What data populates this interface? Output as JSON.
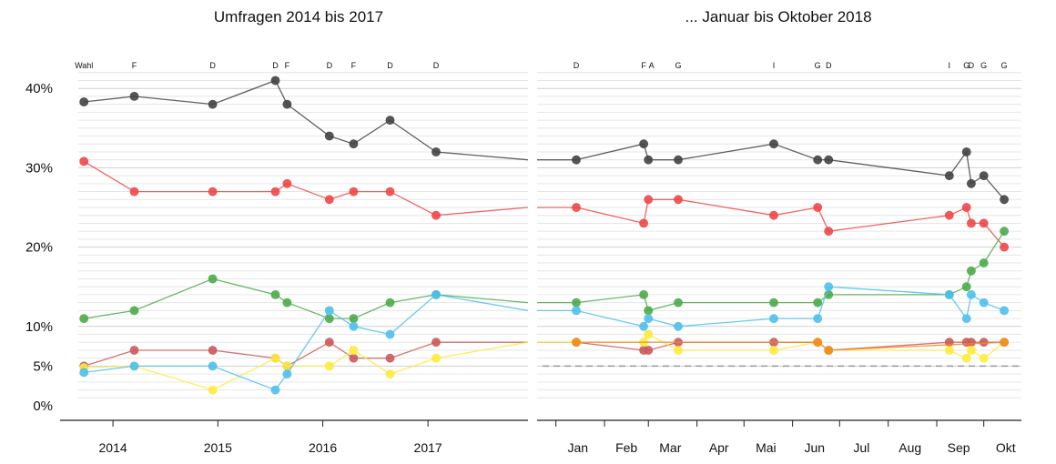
{
  "chart_data": [
    {
      "type": "line",
      "title": "Umfragen 2014 bis 2017",
      "x_axis": {
        "type": "date",
        "range": [
          "2013-07-01",
          "2017-12-15"
        ],
        "ticks": [
          "2014",
          "2015",
          "2016",
          "2017"
        ]
      },
      "y_axis": {
        "range": [
          0,
          42
        ],
        "ticks": [
          "0%",
          "5%",
          "10%",
          "20%",
          "30%",
          "40%"
        ]
      },
      "grid": true,
      "annotations": [
        {
          "date": "2013-09-22",
          "label": "Wahl"
        },
        {
          "date": "2014-03-16",
          "label": "F"
        },
        {
          "date": "2014-12-14",
          "label": "D"
        },
        {
          "date": "2015-07-20",
          "label": "D"
        },
        {
          "date": "2015-08-30",
          "label": "F"
        },
        {
          "date": "2016-01-24",
          "label": "D"
        },
        {
          "date": "2016-04-17",
          "label": "F"
        },
        {
          "date": "2016-08-22",
          "label": "D"
        },
        {
          "date": "2017-01-29",
          "label": "D"
        }
      ],
      "series": [
        {
          "color": "#444444",
          "x": [
            "2013-09-22",
            "2014-03-16",
            "2014-12-14",
            "2015-07-20",
            "2015-08-30",
            "2016-01-24",
            "2016-04-17",
            "2016-08-22",
            "2017-01-29"
          ],
          "y": [
            38.3,
            39,
            38,
            41,
            38,
            34,
            33,
            36,
            32
          ],
          "end_y": 31
        },
        {
          "color": "#f04848",
          "x": [
            "2013-09-22",
            "2014-03-16",
            "2014-12-14",
            "2015-07-20",
            "2015-08-30",
            "2016-01-24",
            "2016-04-17",
            "2016-08-22",
            "2017-01-29"
          ],
          "y": [
            30.8,
            27,
            27,
            27,
            28,
            26,
            27,
            27,
            24
          ],
          "end_y": 25
        },
        {
          "color": "#4cac48",
          "x": [
            "2013-09-22",
            "2014-03-16",
            "2014-12-14",
            "2015-07-20",
            "2015-08-30",
            "2016-01-24",
            "2016-04-17",
            "2016-08-22",
            "2017-01-29"
          ],
          "y": [
            11,
            12,
            16,
            14,
            13,
            11,
            11,
            13,
            14
          ],
          "end_y": 13
        },
        {
          "color": "#cc5a5a",
          "x": [
            "2013-09-22",
            "2014-03-16",
            "2014-12-14",
            "2015-07-20",
            "2015-08-30",
            "2016-01-24",
            "2016-04-17",
            "2016-08-22",
            "2017-01-29"
          ],
          "y": [
            5,
            7,
            7,
            6,
            5,
            8,
            6,
            6,
            8
          ],
          "end_y": 8
        },
        {
          "color": "#ffea3c",
          "x": [
            "2013-09-22",
            "2014-03-16",
            "2014-12-14",
            "2015-07-20",
            "2015-08-30",
            "2016-01-24",
            "2016-04-17",
            "2016-08-22",
            "2017-01-29"
          ],
          "y": [
            4.8,
            5,
            2,
            6,
            5,
            5,
            7,
            4,
            6
          ],
          "end_y": 8
        },
        {
          "color": "#4ec0ee",
          "x": [
            "2013-09-22",
            "2014-03-16",
            "2014-12-14",
            "2015-07-20",
            "2015-08-30",
            "2016-01-24",
            "2016-04-17",
            "2016-08-22",
            "2017-01-29"
          ],
          "y": [
            4.2,
            5,
            5,
            2,
            4,
            12,
            10,
            9,
            14
          ],
          "end_y": 12
        }
      ]
    },
    {
      "type": "line",
      "title": "... Januar bis Oktober 2018",
      "x_axis": {
        "type": "date",
        "range": [
          "2017-12-20",
          "2018-10-25"
        ],
        "ticks": [
          "Jan",
          "Feb",
          "Mar",
          "Apr",
          "Mai",
          "Jun",
          "Jul",
          "Aug",
          "Sep",
          "Okt"
        ]
      },
      "y_axis": {
        "range": [
          0,
          42
        ]
      },
      "reference_line": {
        "y": 5,
        "style": "dashed"
      },
      "grid": true,
      "annotations": [
        {
          "date": "2018-01-14",
          "label": "D"
        },
        {
          "date": "2018-02-26",
          "label": "F"
        },
        {
          "date": "2018-03-03",
          "label": "A"
        },
        {
          "date": "2018-03-20",
          "label": "G"
        },
        {
          "date": "2018-05-20",
          "label": "I"
        },
        {
          "date": "2018-06-17",
          "label": "G"
        },
        {
          "date": "2018-06-24",
          "label": "D"
        },
        {
          "date": "2018-09-09",
          "label": "I"
        },
        {
          "date": "2018-09-20",
          "label": "G"
        },
        {
          "date": "2018-09-23",
          "label": "D"
        },
        {
          "date": "2018-10-01",
          "label": "G"
        },
        {
          "date": "2018-10-14",
          "label": "G"
        }
      ],
      "series": [
        {
          "color": "#444444",
          "start_y": 31,
          "x": [
            "2018-01-14",
            "2018-02-26",
            "2018-03-01",
            "2018-03-20",
            "2018-05-20",
            "2018-06-17",
            "2018-06-24",
            "2018-09-09",
            "2018-09-20",
            "2018-09-23",
            "2018-10-01",
            "2018-10-14"
          ],
          "y": [
            31,
            33,
            31,
            31,
            33,
            31,
            31,
            29,
            32,
            28,
            29,
            26
          ]
        },
        {
          "color": "#f04848",
          "start_y": 25,
          "x": [
            "2018-01-14",
            "2018-02-26",
            "2018-03-01",
            "2018-03-20",
            "2018-05-20",
            "2018-06-17",
            "2018-06-24",
            "2018-09-09",
            "2018-09-20",
            "2018-09-23",
            "2018-10-01",
            "2018-10-14"
          ],
          "y": [
            25,
            23,
            26,
            26,
            24,
            25,
            22,
            24,
            25,
            23,
            23,
            20
          ]
        },
        {
          "color": "#4cac48",
          "start_y": 13,
          "x": [
            "2018-01-14",
            "2018-02-26",
            "2018-03-01",
            "2018-03-20",
            "2018-05-20",
            "2018-06-17",
            "2018-06-24",
            "2018-09-09",
            "2018-09-20",
            "2018-09-23",
            "2018-10-01",
            "2018-10-14"
          ],
          "y": [
            13,
            14,
            12,
            13,
            13,
            13,
            14,
            14,
            15,
            17,
            18,
            22
          ]
        },
        {
          "color": "#4ec0ee",
          "start_y": 12,
          "x": [
            "2018-01-14",
            "2018-02-26",
            "2018-03-01",
            "2018-03-20",
            "2018-05-20",
            "2018-06-17",
            "2018-06-24",
            "2018-09-09",
            "2018-09-20",
            "2018-09-23",
            "2018-10-01",
            "2018-10-14"
          ],
          "y": [
            12,
            10,
            11,
            10,
            11,
            11,
            15,
            14,
            11,
            14,
            13,
            12
          ]
        },
        {
          "color": "#cc5a5a",
          "start_y": 8,
          "x": [
            "2018-01-14",
            "2018-02-26",
            "2018-03-01",
            "2018-03-20",
            "2018-05-20",
            "2018-06-17",
            "2018-06-24",
            "2018-09-09",
            "2018-09-20",
            "2018-09-23",
            "2018-10-01",
            "2018-10-14"
          ],
          "y": [
            8,
            7,
            7,
            8,
            8,
            8,
            7,
            8,
            8,
            8,
            8,
            8
          ]
        },
        {
          "color": "#ffea3c",
          "start_y": 8,
          "x": [
            "2018-01-14",
            "2018-02-26",
            "2018-03-01",
            "2018-03-20",
            "2018-05-20",
            "2018-06-17",
            "2018-06-24",
            "2018-09-09",
            "2018-09-20",
            "2018-09-23",
            "2018-10-01",
            "2018-10-14"
          ],
          "y": [
            8,
            8,
            9,
            7,
            7,
            8,
            7,
            7,
            6,
            7,
            6,
            8
          ]
        },
        {
          "color": "#f08a20",
          "x": [
            "2018-01-14",
            "2018-06-17",
            "2018-06-24",
            "2018-10-14"
          ],
          "y": [
            8,
            8,
            7,
            8
          ]
        }
      ]
    }
  ]
}
